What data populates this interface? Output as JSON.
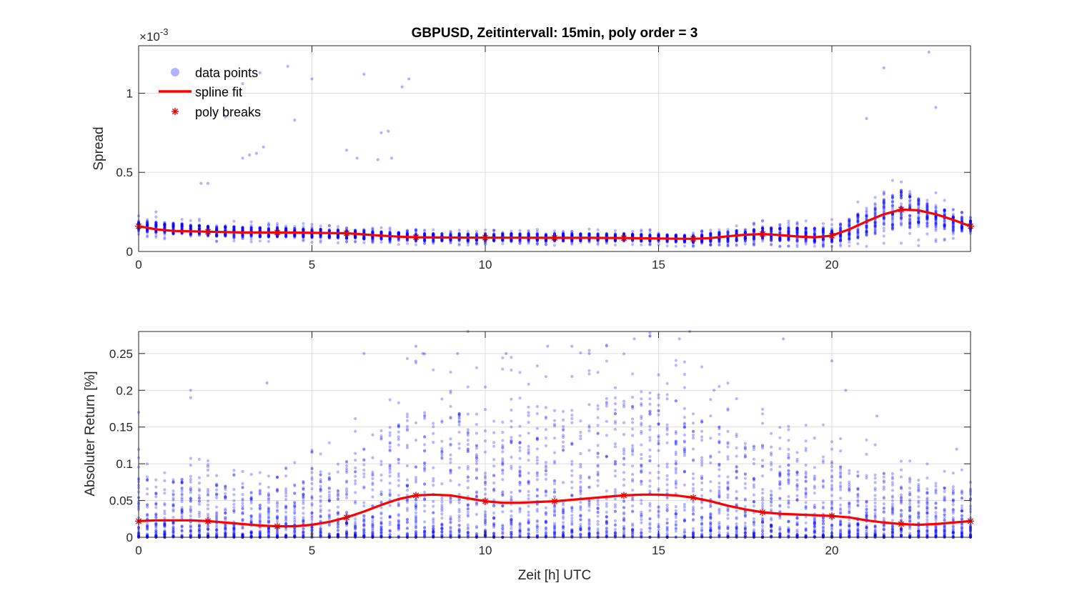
{
  "figure": {
    "title": "GBPUSD, Zeitintervall: 15min, poly order = 3",
    "xlabel": "Zeit [h] UTC",
    "legend": {
      "items": [
        {
          "label": "data points",
          "marker": "dot",
          "color": "#8080ff"
        },
        {
          "label": "spline fit",
          "marker": "line",
          "color": "#ff0000"
        },
        {
          "label": "poly breaks",
          "marker": "asterisk",
          "color": "#e00000"
        }
      ]
    },
    "colors": {
      "points": "#0000ff",
      "fit": "#ff0000",
      "breaks": "#e00000",
      "grid": "#dddddd",
      "axis": "#262626"
    }
  },
  "chart_data": [
    {
      "type": "scatter",
      "title": "GBPUSD, Zeitintervall: 15min, poly order = 3",
      "xlabel": "",
      "ylabel": "Spread",
      "y_exponent_label": "×10^-3",
      "y_exponent_base": "10",
      "y_exponent_power": "-3",
      "xlim": [
        0,
        24
      ],
      "ylim": [
        0,
        1.3
      ],
      "xticks": [
        0,
        5,
        10,
        15,
        20
      ],
      "yticks": [
        0,
        0.5,
        1
      ],
      "ytick_labels": [
        "0",
        "0.5",
        "1"
      ],
      "grid": true,
      "legend_position": "top-left",
      "series": [
        {
          "name": "data points",
          "kind": "scatter",
          "bin_hours": 0.25,
          "typical_mean": [
            [
              0,
              0.16
            ],
            [
              2,
              0.13
            ],
            [
              4,
              0.12
            ],
            [
              6,
              0.11
            ],
            [
              8,
              0.09
            ],
            [
              10,
              0.09
            ],
            [
              12,
              0.09
            ],
            [
              14,
              0.09
            ],
            [
              16,
              0.08
            ],
            [
              18,
              0.11
            ],
            [
              20,
              0.1
            ],
            [
              22,
              0.27
            ],
            [
              24,
              0.16
            ]
          ],
          "typical_spread": [
            [
              0,
              0.06
            ],
            [
              4,
              0.05
            ],
            [
              8,
              0.04
            ],
            [
              16,
              0.04
            ],
            [
              18,
              0.07
            ],
            [
              20,
              0.08
            ],
            [
              21,
              0.15
            ],
            [
              22,
              0.2
            ],
            [
              23,
              0.12
            ],
            [
              24,
              0.06
            ]
          ],
          "outliers": [
            [
              0.5,
              0.25
            ],
            [
              1.8,
              0.43
            ],
            [
              2.0,
              0.43
            ],
            [
              3.0,
              0.59
            ],
            [
              3.2,
              0.61
            ],
            [
              3.4,
              0.62
            ],
            [
              3.6,
              0.66
            ],
            [
              3.0,
              1.06
            ],
            [
              3.5,
              1.13
            ],
            [
              4.3,
              1.17
            ],
            [
              4.5,
              0.83
            ],
            [
              5.0,
              1.09
            ],
            [
              6.0,
              0.64
            ],
            [
              6.3,
              0.59
            ],
            [
              6.5,
              1.12
            ],
            [
              7.0,
              0.75
            ],
            [
              7.2,
              0.76
            ],
            [
              7.3,
              0.59
            ],
            [
              7.6,
              1.04
            ],
            [
              7.8,
              1.09
            ],
            [
              6.9,
              0.58
            ],
            [
              2.5,
              0.85
            ],
            [
              21.5,
              1.16
            ],
            [
              22.8,
              1.26
            ],
            [
              23.0,
              0.91
            ],
            [
              21.0,
              0.84
            ]
          ]
        },
        {
          "name": "spline fit",
          "kind": "line",
          "x": [
            0,
            0.5,
            1,
            2,
            3,
            4,
            5,
            6,
            6.5,
            7,
            7.5,
            8,
            9,
            10,
            11,
            12,
            13,
            14,
            15,
            16,
            16.5,
            17,
            17.5,
            18,
            18.5,
            19,
            19.5,
            20,
            20.5,
            21,
            21.5,
            22,
            22.5,
            23,
            23.5,
            24
          ],
          "y": [
            0.16,
            0.14,
            0.13,
            0.125,
            0.12,
            0.12,
            0.118,
            0.115,
            0.108,
            0.1,
            0.094,
            0.09,
            0.088,
            0.087,
            0.087,
            0.086,
            0.086,
            0.085,
            0.082,
            0.08,
            0.085,
            0.096,
            0.106,
            0.11,
            0.104,
            0.095,
            0.09,
            0.1,
            0.14,
            0.19,
            0.235,
            0.265,
            0.26,
            0.235,
            0.2,
            0.16
          ]
        },
        {
          "name": "poly breaks",
          "kind": "markers",
          "x": [
            0,
            2,
            4,
            6,
            8,
            10,
            12,
            14,
            16,
            18,
            20,
            22,
            24
          ],
          "y": [
            0.16,
            0.125,
            0.12,
            0.115,
            0.09,
            0.087,
            0.086,
            0.085,
            0.08,
            0.11,
            0.1,
            0.265,
            0.16
          ]
        }
      ]
    },
    {
      "type": "scatter",
      "title": "",
      "xlabel": "Zeit [h] UTC",
      "ylabel": "Absoluter Return [%]",
      "xlim": [
        0,
        24
      ],
      "ylim": [
        0,
        0.28
      ],
      "xticks": [
        0,
        5,
        10,
        15,
        20
      ],
      "yticks": [
        0,
        0.05,
        0.1,
        0.15,
        0.2,
        0.25
      ],
      "ytick_labels": [
        "0",
        "0.05",
        "0.1",
        "0.15",
        "0.2",
        "0.25"
      ],
      "grid": true,
      "series": [
        {
          "name": "data points",
          "kind": "scatter",
          "bin_hours": 0.25,
          "typical_max": [
            [
              0,
              0.08
            ],
            [
              2,
              0.07
            ],
            [
              4,
              0.06
            ],
            [
              6,
              0.1
            ],
            [
              7,
              0.14
            ],
            [
              8,
              0.17
            ],
            [
              10,
              0.17
            ],
            [
              12,
              0.16
            ],
            [
              14,
              0.18
            ],
            [
              15,
              0.2
            ],
            [
              16,
              0.16
            ],
            [
              18,
              0.12
            ],
            [
              20,
              0.1
            ],
            [
              22,
              0.08
            ],
            [
              24,
              0.06
            ]
          ],
          "outliers": [
            [
              0,
              0.17
            ],
            [
              1.5,
              0.2
            ],
            [
              1.5,
              0.19
            ],
            [
              3.7,
              0.21
            ],
            [
              6.5,
              0.25
            ],
            [
              8.0,
              0.26
            ],
            [
              8.2,
              0.25
            ],
            [
              9.5,
              0.28
            ],
            [
              9.2,
              0.25
            ],
            [
              11.8,
              0.26
            ],
            [
              12.5,
              0.26
            ],
            [
              13.0,
              0.25
            ],
            [
              14.3,
              0.27
            ],
            [
              15.6,
              0.27
            ],
            [
              15.9,
              0.28
            ],
            [
              18.6,
              0.27
            ],
            [
              20.0,
              0.24
            ],
            [
              20.4,
              0.2
            ],
            [
              21.3,
              0.165
            ],
            [
              23.6,
              0.12
            ],
            [
              16.6,
              0.2
            ],
            [
              10.6,
              0.25
            ]
          ]
        },
        {
          "name": "spline fit",
          "kind": "line",
          "x": [
            0,
            0.5,
            1,
            1.5,
            2,
            2.5,
            3,
            3.5,
            4,
            4.5,
            5,
            5.5,
            6,
            6.5,
            7,
            7.5,
            8,
            8.5,
            9,
            9.5,
            10,
            10.5,
            11,
            11.5,
            12,
            12.5,
            13,
            13.5,
            14,
            14.5,
            15,
            15.5,
            16,
            16.5,
            17,
            17.5,
            18,
            18.5,
            19,
            19.5,
            20,
            20.5,
            21,
            21.5,
            22,
            22.5,
            23,
            23.5,
            24
          ],
          "y": [
            0.022,
            0.023,
            0.023,
            0.023,
            0.022,
            0.02,
            0.018,
            0.016,
            0.015,
            0.015,
            0.017,
            0.021,
            0.027,
            0.035,
            0.044,
            0.052,
            0.057,
            0.058,
            0.057,
            0.053,
            0.049,
            0.047,
            0.047,
            0.048,
            0.049,
            0.051,
            0.053,
            0.055,
            0.057,
            0.058,
            0.058,
            0.057,
            0.054,
            0.049,
            0.043,
            0.038,
            0.034,
            0.032,
            0.031,
            0.03,
            0.029,
            0.027,
            0.023,
            0.02,
            0.018,
            0.017,
            0.018,
            0.02,
            0.022
          ]
        },
        {
          "name": "poly breaks",
          "kind": "markers",
          "x": [
            0,
            2,
            4,
            6,
            8,
            10,
            12,
            14,
            16,
            18,
            20,
            22,
            24
          ],
          "y": [
            0.022,
            0.022,
            0.015,
            0.027,
            0.057,
            0.049,
            0.049,
            0.057,
            0.054,
            0.034,
            0.029,
            0.018,
            0.022
          ]
        }
      ]
    }
  ]
}
